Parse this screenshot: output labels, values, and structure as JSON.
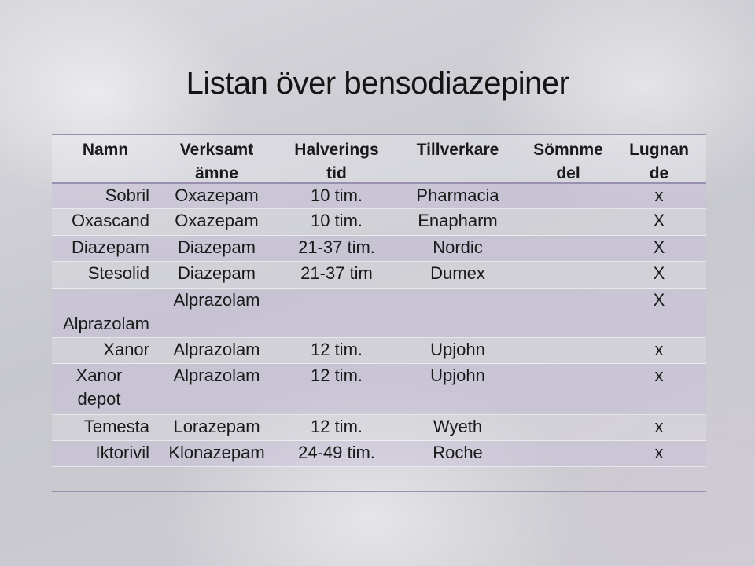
{
  "title": "Listan över bensodiazepiner",
  "headers": [
    [
      "Namn",
      ""
    ],
    [
      "Verksamt",
      "ämne"
    ],
    [
      "Halverings",
      "tid"
    ],
    [
      "Tillverkare",
      ""
    ],
    [
      "Sömnme",
      "del"
    ],
    [
      "Lugnan",
      "de"
    ]
  ],
  "rows": [
    {
      "namn": "Sobril",
      "amne": "Oxazepam",
      "tid": "10 tim.",
      "tillverkare": "Pharmacia",
      "somn": "",
      "lugn": "x"
    },
    {
      "namn": "Oxascand",
      "amne": "Oxazepam",
      "tid": "10 tim.",
      "tillverkare": "Enapharm",
      "somn": "",
      "lugn": "X"
    },
    {
      "namn": "Diazepam",
      "amne": "Diazepam",
      "tid": "21-37 tim.",
      "tillverkare": "Nordic",
      "somn": "",
      "lugn": "X"
    },
    {
      "namn": "Stesolid",
      "amne": "Diazepam",
      "tid": "21-37 tim",
      "tillverkare": "Dumex",
      "somn": "",
      "lugn": "X"
    },
    {
      "namn": "Alprazolam",
      "amne": "Alprazolam",
      "tid": "",
      "tillverkare": "",
      "somn": "",
      "lugn": "X"
    },
    {
      "namn": "Xanor",
      "amne": "Alprazolam",
      "tid": "12 tim.",
      "tillverkare": "Upjohn",
      "somn": "",
      "lugn": "x"
    },
    {
      "namn": "Xanor depot",
      "amne": "Alprazolam",
      "tid": "12 tim.",
      "tillverkare": "Upjohn",
      "somn": "",
      "lugn": "x"
    },
    {
      "namn": "Temesta",
      "amne": "Lorazepam",
      "tid": "12 tim.",
      "tillverkare": "Wyeth",
      "somn": "",
      "lugn": "x"
    },
    {
      "namn": "Iktorivil",
      "amne": "Klonazepam",
      "tid": "24-49 tim.",
      "tillverkare": "Roche",
      "somn": "",
      "lugn": "x"
    }
  ]
}
